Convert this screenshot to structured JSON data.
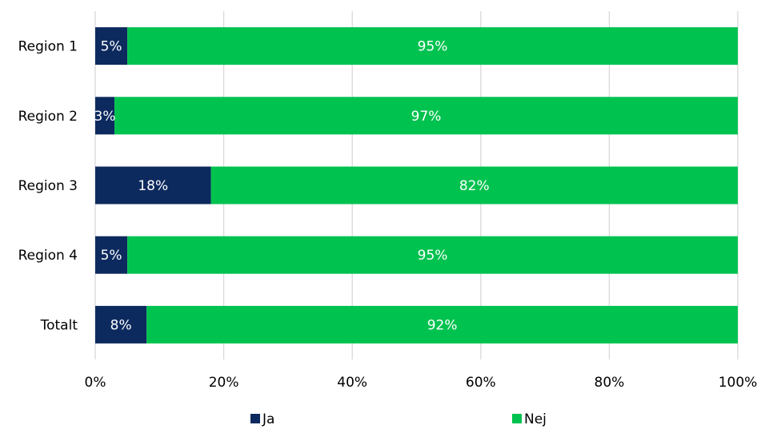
{
  "chart_data": {
    "type": "bar",
    "orientation": "horizontal",
    "stacked": "percent",
    "categories": [
      "Region 1",
      "Region 2",
      "Region 3",
      "Region 4",
      "Totalt"
    ],
    "series": [
      {
        "name": "Ja",
        "color": "#0d2a5e",
        "values": [
          5,
          3,
          18,
          5,
          8
        ],
        "labels": [
          "5%",
          "3%",
          "18%",
          "5%",
          "8%"
        ]
      },
      {
        "name": "Nej",
        "color": "#00c24f",
        "values": [
          95,
          97,
          82,
          95,
          92
        ],
        "labels": [
          "95%",
          "97%",
          "82%",
          "95%",
          "92%"
        ]
      }
    ],
    "xlim": [
      0,
      100
    ],
    "x_ticks": [
      0,
      20,
      40,
      60,
      80,
      100
    ],
    "x_tick_labels": [
      "0%",
      "20%",
      "40%",
      "60%",
      "80%",
      "100%"
    ],
    "grid": "vertical",
    "grid_color": "#d9d9d9",
    "legend_position": "bottom",
    "title": "",
    "xlabel": "",
    "ylabel": ""
  }
}
